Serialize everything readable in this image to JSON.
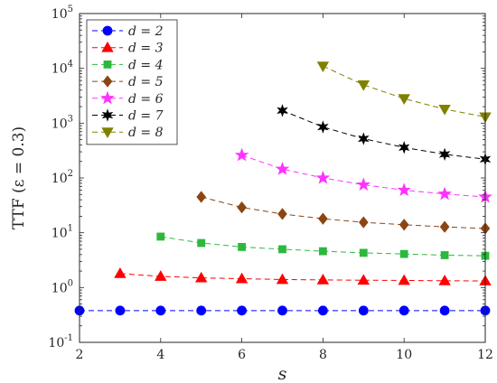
{
  "chart_data": {
    "type": "line",
    "xlabel": "s",
    "ylabel": "TTF  (ε = 0.3)",
    "xlim": [
      2,
      12
    ],
    "ylim": [
      0.1,
      100000
    ],
    "yscale": "log",
    "xticks": [
      2,
      4,
      6,
      8,
      10,
      12
    ],
    "yticks": [
      {
        "value": 0.1,
        "base": "10",
        "exp": "-1"
      },
      {
        "value": 1,
        "base": "10",
        "exp": "0"
      },
      {
        "value": 10,
        "base": "10",
        "exp": "1"
      },
      {
        "value": 100,
        "base": "10",
        "exp": "2"
      },
      {
        "value": 1000,
        "base": "10",
        "exp": "3"
      },
      {
        "value": 10000,
        "base": "10",
        "exp": "4"
      },
      {
        "value": 100000,
        "base": "10",
        "exp": "5"
      }
    ],
    "grid": false,
    "legend_position": "top-left",
    "series": [
      {
        "name": "d = 2",
        "color": "#0000ff",
        "marker": "circle",
        "x": [
          2,
          3,
          4,
          5,
          6,
          7,
          8,
          9,
          10,
          11,
          12
        ],
        "y": [
          0.38,
          0.38,
          0.38,
          0.38,
          0.38,
          0.38,
          0.38,
          0.38,
          0.38,
          0.38,
          0.38
        ]
      },
      {
        "name": "d = 3",
        "color": "#ff0000",
        "marker": "triangle-up",
        "x": [
          3,
          4,
          5,
          6,
          7,
          8,
          9,
          10,
          11,
          12
        ],
        "y": [
          1.8,
          1.6,
          1.5,
          1.45,
          1.4,
          1.38,
          1.36,
          1.35,
          1.33,
          1.32
        ]
      },
      {
        "name": "d = 4",
        "color": "#2db83d",
        "marker": "square",
        "x": [
          4,
          5,
          6,
          7,
          8,
          9,
          10,
          11,
          12
        ],
        "y": [
          8.5,
          6.5,
          5.5,
          5.0,
          4.6,
          4.3,
          4.1,
          3.9,
          3.8
        ]
      },
      {
        "name": "d = 5",
        "color": "#8b4513",
        "marker": "diamond",
        "x": [
          5,
          6,
          7,
          8,
          9,
          10,
          11,
          12
        ],
        "y": [
          45,
          29,
          22,
          18,
          15.5,
          14,
          12.8,
          12
        ]
      },
      {
        "name": "d = 6",
        "color": "#ff33ff",
        "marker": "star5",
        "x": [
          6,
          7,
          8,
          9,
          10,
          11,
          12
        ],
        "y": [
          260,
          145,
          100,
          75,
          60,
          51,
          45
        ]
      },
      {
        "name": "d = 7",
        "color": "#000000",
        "marker": "star6",
        "x": [
          7,
          8,
          9,
          10,
          11,
          12
        ],
        "y": [
          1700,
          850,
          520,
          360,
          270,
          220
        ]
      },
      {
        "name": "d = 8",
        "color": "#808000",
        "marker": "triangle-down",
        "x": [
          8,
          9,
          10,
          11,
          12
        ],
        "y": [
          11000,
          5000,
          2800,
          1800,
          1300
        ]
      }
    ]
  }
}
